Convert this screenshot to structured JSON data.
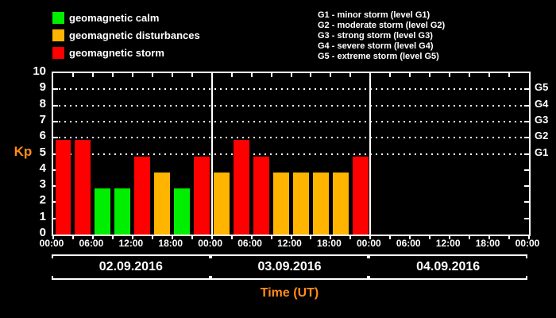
{
  "colors": {
    "background": "#000000",
    "axis": "#ffffff",
    "text": "#ffffff",
    "accent_orange": "#ff8c1a",
    "calm": "#00ee00",
    "disturbance": "#ffb400",
    "storm": "#ff0000"
  },
  "legend": {
    "items": [
      {
        "label": "geomagnetic calm",
        "category": "calm"
      },
      {
        "label": "geomagnetic disturbances",
        "category": "disturbance"
      },
      {
        "label": "geomagnetic storm",
        "category": "storm"
      }
    ]
  },
  "storm_scale": {
    "lines": [
      "G1 - minor storm (level G1)",
      "G2 - moderate storm (level G2)",
      "G3 - strong storm (level G3)",
      "G4 - severe storm (level G4)",
      "G5 - extreme storm (level G5)"
    ]
  },
  "chart_data": {
    "type": "bar",
    "title": "",
    "ylabel": "Kp",
    "xlabel": "Time (UT)",
    "ylim": [
      0,
      10
    ],
    "yticks": [
      0,
      1,
      2,
      3,
      4,
      5,
      6,
      7,
      8,
      9,
      10
    ],
    "dotted_gridlines_at_kp": [
      5,
      6,
      7,
      8,
      9
    ],
    "right_axis_labels": [
      {
        "label": "G5",
        "kp": 9
      },
      {
        "label": "G4",
        "kp": 8
      },
      {
        "label": "G3",
        "kp": 7
      },
      {
        "label": "G2",
        "kp": 6
      },
      {
        "label": "G1",
        "kp": 5
      }
    ],
    "x_tick_labels": [
      "00:00",
      "06:00",
      "12:00",
      "18:00",
      "00:00",
      "06:00",
      "12:00",
      "18:00",
      "00:00",
      "06:00",
      "12:00",
      "18:00",
      "00:00"
    ],
    "hours_per_bar": 3,
    "bars_per_day": 8,
    "grid": "horizontal dotted lines at Kp 5-9",
    "legend_position": "top-left",
    "days": [
      {
        "date": "02.09.2016",
        "values": [
          6,
          6,
          3,
          3,
          5,
          4,
          3,
          5
        ],
        "categories": [
          "storm",
          "storm",
          "calm",
          "calm",
          "storm",
          "disturbance",
          "calm",
          "storm"
        ]
      },
      {
        "date": "03.09.2016",
        "values": [
          4,
          6,
          5,
          4,
          4,
          4,
          4,
          5
        ],
        "categories": [
          "disturbance",
          "storm",
          "storm",
          "disturbance",
          "disturbance",
          "disturbance",
          "disturbance",
          "storm"
        ]
      },
      {
        "date": "04.09.2016",
        "values": [],
        "categories": []
      }
    ]
  }
}
